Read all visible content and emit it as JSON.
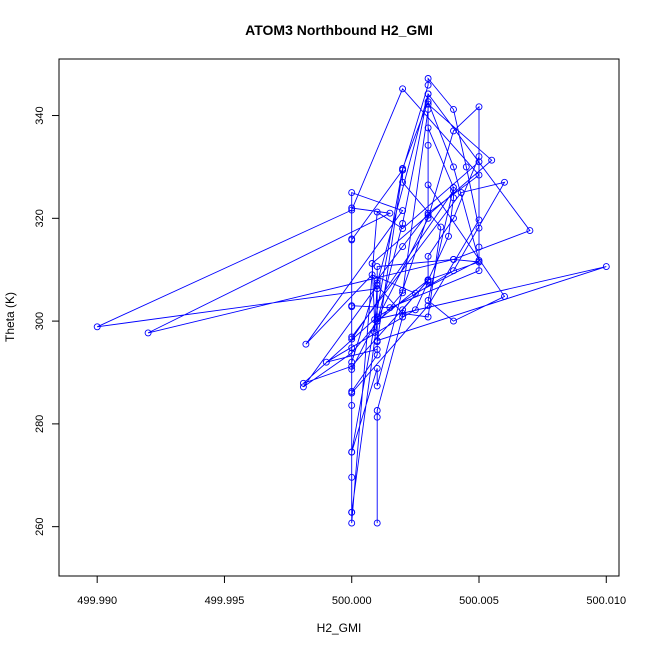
{
  "chart_data": {
    "type": "line",
    "title": "ATOM3 Northbound H2_GMI",
    "xlabel": "H2_GMI",
    "ylabel": "Theta (K)",
    "xlim": [
      499.9885,
      500.0105
    ],
    "ylim": [
      250.4,
      351.0
    ],
    "xticks": [
      499.99,
      499.995,
      500.0,
      500.005,
      500.01
    ],
    "xtick_labels": [
      "499.990",
      "499.995",
      "500.000",
      "500.005",
      "500.010"
    ],
    "yticks": [
      260,
      280,
      300,
      320,
      340
    ],
    "ytick_labels": [
      "260",
      "280",
      "300",
      "320",
      "340"
    ],
    "grid": false,
    "legend": "none",
    "colors": {
      "series": "#0000ff",
      "axis": "#000000",
      "background": "#ffffff"
    },
    "series": [
      {
        "marker": "open-circle",
        "points": [
          [
            500.001,
            260.7
          ],
          [
            500.001,
            281.3
          ],
          [
            500.001,
            282.6
          ],
          [
            500.002,
            300.8
          ],
          [
            500.002,
            302.2
          ],
          [
            500.003,
            308.0
          ],
          [
            500.003,
            312.6
          ],
          [
            500.004,
            320.0
          ],
          [
            500.005,
            332.0
          ],
          [
            500.005,
            319.7
          ],
          [
            500.003,
            303.0
          ],
          [
            500.0,
            286.0
          ],
          [
            500.0,
            274.5
          ],
          [
            500.001,
            290.8
          ],
          [
            500.001,
            287.4
          ],
          [
            500.002,
            306.0
          ],
          [
            500.003,
            320.6
          ],
          [
            500.003,
            334.2
          ],
          [
            500.003,
            337.6
          ],
          [
            500.004,
            326.0
          ],
          [
            500.003,
            304.0
          ],
          [
            500.004,
            300.0
          ],
          [
            500.006,
            304.8
          ],
          [
            500.003,
            326.5
          ],
          [
            500.003,
            342.2
          ],
          [
            500.0055,
            331.3
          ],
          [
            500.0008,
            311.2
          ],
          [
            500.0009,
            300.3
          ],
          [
            500.0009,
            297.8
          ],
          [
            500.001,
            307.4
          ],
          [
            500.003,
            344.2
          ],
          [
            500.007,
            317.6
          ],
          [
            500.004,
            312.0
          ],
          [
            500.001,
            310.6
          ],
          [
            500.001,
            300.0
          ],
          [
            500.0,
            262.8
          ],
          [
            500.0,
            269.6
          ],
          [
            500.0,
            286.3
          ],
          [
            500.001,
            293.4
          ],
          [
            500.001,
            296.0
          ],
          [
            500.002,
            329.4
          ],
          [
            500.003,
            345.9
          ],
          [
            500.003,
            347.2
          ],
          [
            500.004,
            341.2
          ],
          [
            500.0045,
            330.0
          ],
          [
            500.005,
            318.1
          ],
          [
            500.005,
            314.4
          ],
          [
            500.005,
            309.8
          ],
          [
            500.0015,
            302.6
          ],
          [
            500.0,
            303.0
          ],
          [
            500.0,
            274.5
          ],
          [
            500.002,
            329.7
          ],
          [
            500.003,
            342.7
          ],
          [
            500.004,
            330.0
          ],
          [
            500.005,
            311.8
          ],
          [
            500.0025,
            305.4
          ],
          [
            500.0008,
            309.0
          ],
          [
            499.9982,
            295.5
          ],
          [
            500.002,
            321.5
          ],
          [
            500.0,
            325.0
          ],
          [
            500.0,
            294.8
          ],
          [
            500.0,
            283.6
          ],
          [
            500.0,
            292.0
          ],
          [
            500.001,
            308.0
          ],
          [
            500.002,
            314.5
          ],
          [
            500.003,
            321.0
          ],
          [
            500.005,
            328.4
          ],
          [
            500.002,
            345.2
          ],
          [
            500.0,
            321.6
          ],
          [
            499.99,
            298.9
          ],
          [
            500.001,
            306.3
          ],
          [
            500.001,
            300.0
          ],
          [
            500.002,
            319.0
          ],
          [
            500.003,
            344.2
          ],
          [
            500.003,
            341.2
          ],
          [
            500.002,
            305.5
          ],
          [
            500.0,
            293.8
          ],
          [
            499.9981,
            287.2
          ],
          [
            500.001,
            306.9
          ],
          [
            500.002,
            301.5
          ],
          [
            500.003,
            300.8
          ],
          [
            500.0035,
            318.3
          ],
          [
            500.002,
            327.0
          ],
          [
            500.002,
            329.4
          ],
          [
            500.0,
            315.8
          ],
          [
            500.0,
            290.6
          ],
          [
            500.003,
            320.0
          ],
          [
            500.004,
            337.0
          ],
          [
            500.005,
            341.7
          ],
          [
            500.005,
            331.0
          ],
          [
            500.002,
            318.0
          ],
          [
            500.001,
            321.2
          ],
          [
            500.0,
            260.7
          ],
          [
            500.0,
            262.8
          ],
          [
            500.0,
            296.5
          ],
          [
            500.004,
            325.4
          ],
          [
            500.004,
            324.0
          ],
          [
            500.0038,
            316.5
          ],
          [
            500.003,
            307.9
          ],
          [
            500.0,
            291.2
          ],
          [
            499.9981,
            287.9
          ],
          [
            500.001,
            300.8
          ],
          [
            500.004,
            309.8
          ],
          [
            500.006,
            327.0
          ],
          [
            500.0043,
            325.0
          ],
          [
            500.0,
            296.9
          ],
          [
            500.0,
            302.8
          ],
          [
            500.0,
            316.0
          ],
          [
            500.0,
            322.0
          ],
          [
            500.0015,
            321.0
          ],
          [
            499.992,
            297.7
          ],
          [
            500.004,
            312.0
          ],
          [
            500.005,
            311.5
          ],
          [
            500.003,
            308.0
          ],
          [
            500.001,
            300.0
          ],
          [
            500.001,
            296.2
          ],
          [
            500.01,
            310.6
          ],
          [
            500.001,
            300.4
          ],
          [
            500.001,
            294.5
          ],
          [
            499.999,
            292.0
          ],
          [
            500.0025,
            302.2
          ],
          [
            500.003,
            307.6
          ],
          [
            500.003,
            308.0
          ]
        ]
      }
    ]
  }
}
